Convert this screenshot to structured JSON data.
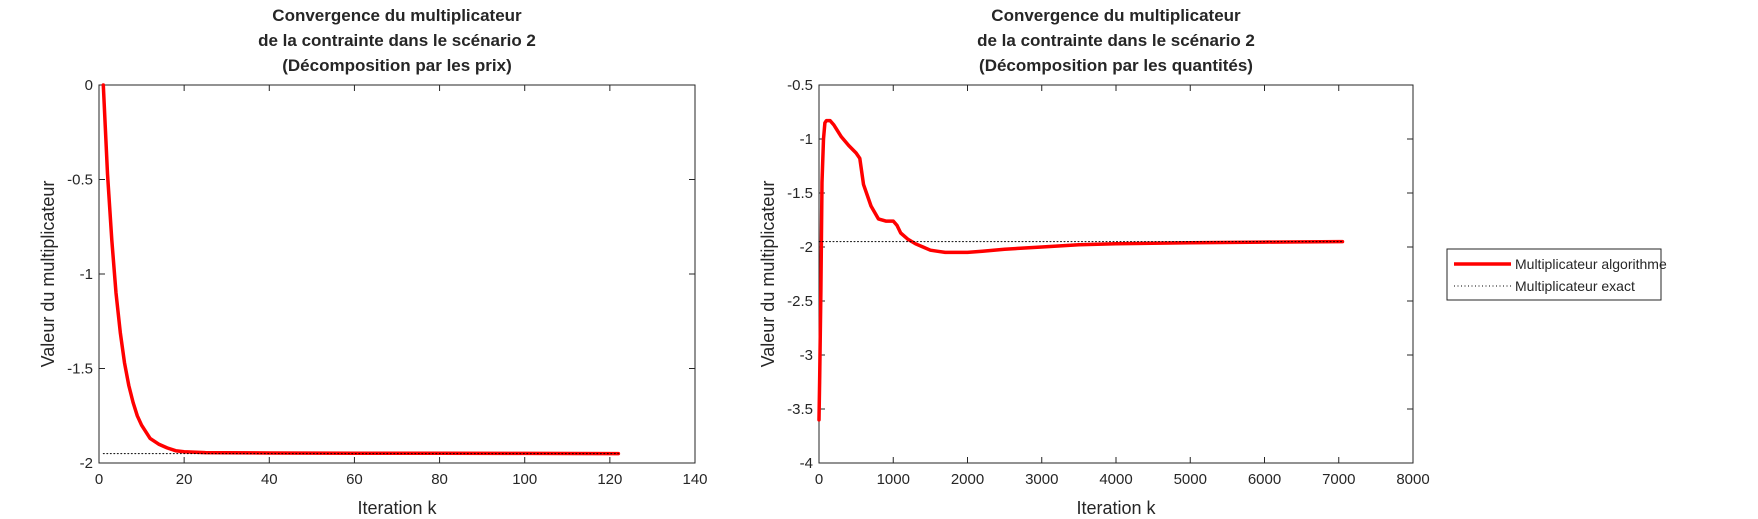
{
  "legend": {
    "entries": [
      "Multiplicateur algorithme",
      "Multiplicateur exact"
    ],
    "placement": "right, outside axes",
    "colors": {
      "algorithme": "#ff0000",
      "exact": "#000000"
    },
    "styles": {
      "algorithme": "solid thick",
      "exact": "dotted thin"
    }
  },
  "chart_data": [
    {
      "type": "line",
      "title": [
        "Convergence du multiplicateur",
        "de la contrainte dans le scénario 2",
        "(Décomposition par les prix)"
      ],
      "xlabel": "Iteration k",
      "ylabel": "Valeur du multiplicateur",
      "xlim": [
        0,
        140
      ],
      "ylim": [
        -2,
        0
      ],
      "xticks": [
        "0",
        "20",
        "40",
        "60",
        "80",
        "100",
        "120",
        "140"
      ],
      "yticks": [
        "0",
        "-0.5",
        "-1",
        "-1.5",
        "-2"
      ],
      "grid": false,
      "series": [
        {
          "name": "Multiplicateur algorithme",
          "color": "#ff0000",
          "x": [
            1,
            2,
            3,
            4,
            5,
            6,
            7,
            8,
            9,
            10,
            12,
            14,
            16,
            18,
            20,
            25,
            30,
            40,
            60,
            80,
            100,
            122
          ],
          "y": [
            0,
            -0.47,
            -0.82,
            -1.1,
            -1.31,
            -1.47,
            -1.59,
            -1.68,
            -1.75,
            -1.8,
            -1.87,
            -1.9,
            -1.92,
            -1.935,
            -1.94,
            -1.945,
            -1.946,
            -1.947,
            -1.948,
            -1.948,
            -1.949,
            -1.95
          ]
        },
        {
          "name": "Multiplicateur exact",
          "color": "#000000",
          "x": [
            1,
            122
          ],
          "y": [
            -1.95,
            -1.95
          ]
        }
      ]
    },
    {
      "type": "line",
      "title": [
        "Convergence du multiplicateur",
        "de la contrainte dans le scénario 2",
        "(Décomposition par les quantités)"
      ],
      "xlabel": "Iteration k",
      "ylabel": "Valeur du multiplicateur",
      "xlim": [
        0,
        8000
      ],
      "ylim": [
        -4,
        -0.5
      ],
      "xticks": [
        "0",
        "1000",
        "2000",
        "3000",
        "4000",
        "5000",
        "6000",
        "7000",
        "8000"
      ],
      "yticks": [
        "-0.5",
        "-1",
        "-1.5",
        "-2",
        "-2.5",
        "-3",
        "-3.5",
        "-4"
      ],
      "grid": false,
      "series": [
        {
          "name": "Multiplicateur algorithme",
          "color": "#ff0000",
          "x": [
            0,
            10,
            25,
            40,
            60,
            80,
            100,
            150,
            200,
            300,
            400,
            500,
            550,
            600,
            700,
            800,
            900,
            1000,
            1050,
            1100,
            1200,
            1300,
            1400,
            1500,
            1600,
            1700,
            1800,
            2000,
            2200,
            2500,
            3000,
            3500,
            4000,
            5000,
            6000,
            7000,
            7050
          ],
          "y": [
            -3.6,
            -3.2,
            -2.4,
            -1.4,
            -1.0,
            -0.85,
            -0.83,
            -0.83,
            -0.87,
            -0.98,
            -1.06,
            -1.13,
            -1.18,
            -1.42,
            -1.62,
            -1.74,
            -1.76,
            -1.76,
            -1.8,
            -1.87,
            -1.93,
            -1.97,
            -2.0,
            -2.03,
            -2.04,
            -2.05,
            -2.05,
            -2.05,
            -2.04,
            -2.02,
            -2.0,
            -1.98,
            -1.97,
            -1.96,
            -1.955,
            -1.95,
            -1.95
          ]
        },
        {
          "name": "Multiplicateur exact",
          "color": "#000000",
          "x": [
            0,
            7050
          ],
          "y": [
            -1.95,
            -1.95
          ]
        }
      ]
    }
  ]
}
